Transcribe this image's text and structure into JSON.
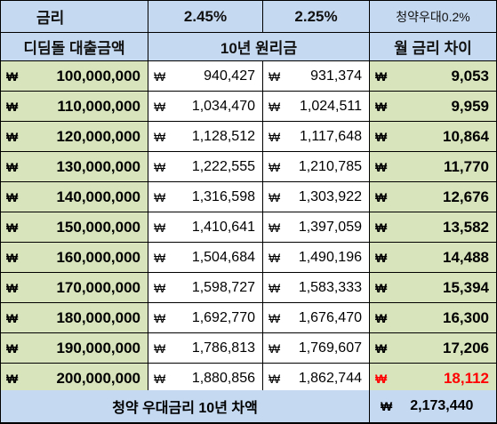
{
  "header_top": {
    "col1": "금리",
    "col2": "2.45%",
    "col3": "2.25%",
    "col4": "청약우대0.2%"
  },
  "header_bottom": {
    "col1": "디딤돌 대출금액",
    "col23": "10년 원리금",
    "col4": "월 금리 차이"
  },
  "currency_symbol": "₩",
  "rows": [
    {
      "loan": "100,000,000",
      "rate_245": "940,427",
      "rate_225": "931,374",
      "diff": "9,053"
    },
    {
      "loan": "110,000,000",
      "rate_245": "1,034,470",
      "rate_225": "1,024,511",
      "diff": "9,959"
    },
    {
      "loan": "120,000,000",
      "rate_245": "1,128,512",
      "rate_225": "1,117,648",
      "diff": "10,864"
    },
    {
      "loan": "130,000,000",
      "rate_245": "1,222,555",
      "rate_225": "1,210,785",
      "diff": "11,770"
    },
    {
      "loan": "140,000,000",
      "rate_245": "1,316,598",
      "rate_225": "1,303,922",
      "diff": "12,676"
    },
    {
      "loan": "150,000,000",
      "rate_245": "1,410,641",
      "rate_225": "1,397,059",
      "diff": "13,582"
    },
    {
      "loan": "160,000,000",
      "rate_245": "1,504,684",
      "rate_225": "1,490,196",
      "diff": "14,488"
    },
    {
      "loan": "170,000,000",
      "rate_245": "1,598,727",
      "rate_225": "1,583,333",
      "diff": "15,394"
    },
    {
      "loan": "180,000,000",
      "rate_245": "1,692,770",
      "rate_225": "1,676,470",
      "diff": "16,300"
    },
    {
      "loan": "190,000,000",
      "rate_245": "1,786,813",
      "rate_225": "1,769,607",
      "diff": "17,206"
    },
    {
      "loan": "200,000,000",
      "rate_245": "1,880,856",
      "rate_225": "1,862,744",
      "diff": "18,112",
      "highlight": true
    }
  ],
  "footer": {
    "label": "청약 우대금리 10년 차액",
    "value": "2,173,440"
  },
  "colors": {
    "header_blue": "#c5d9f1",
    "row_green": "#d8e4bc",
    "highlight_red": "#ff0000"
  }
}
